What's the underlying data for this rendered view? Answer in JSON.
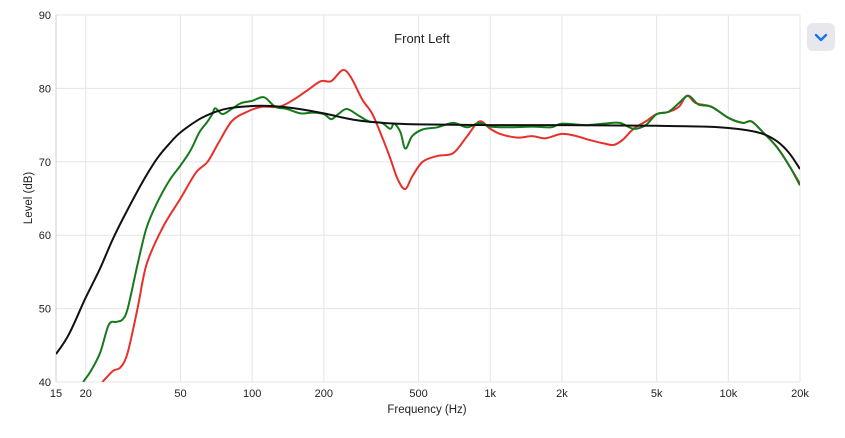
{
  "chart_data": {
    "type": "line",
    "title": "Front Left",
    "xlabel": "Frequency (Hz)",
    "ylabel": "Level (dB)",
    "xscale": "log",
    "xlim": [
      15,
      20000
    ],
    "ylim": [
      40,
      90
    ],
    "grid": true,
    "x_ticks": [
      {
        "value": 15,
        "label": "15"
      },
      {
        "value": 20,
        "label": "20"
      },
      {
        "value": 50,
        "label": "50"
      },
      {
        "value": 100,
        "label": "100"
      },
      {
        "value": 200,
        "label": "200"
      },
      {
        "value": 500,
        "label": "500"
      },
      {
        "value": 1000,
        "label": "1k"
      },
      {
        "value": 2000,
        "label": "2k"
      },
      {
        "value": 5000,
        "label": "5k"
      },
      {
        "value": 10000,
        "label": "10k"
      },
      {
        "value": 20000,
        "label": "20k"
      }
    ],
    "y_ticks": [
      {
        "value": 40,
        "label": "40"
      },
      {
        "value": 50,
        "label": "50"
      },
      {
        "value": 60,
        "label": "60"
      },
      {
        "value": 70,
        "label": "70"
      },
      {
        "value": 80,
        "label": "80"
      },
      {
        "value": 90,
        "label": "90"
      }
    ],
    "series": [
      {
        "color": "#e8302b",
        "points": [
          [
            23.5,
            40
          ],
          [
            26,
            41.5
          ],
          [
            28,
            42
          ],
          [
            30,
            44
          ],
          [
            33,
            50
          ],
          [
            36,
            56
          ],
          [
            42,
            61
          ],
          [
            50,
            65
          ],
          [
            58,
            68.5
          ],
          [
            65,
            70
          ],
          [
            72,
            72.5
          ],
          [
            82,
            75.5
          ],
          [
            95,
            76.8
          ],
          [
            110,
            77.5
          ],
          [
            130,
            77.5
          ],
          [
            150,
            78.5
          ],
          [
            175,
            80
          ],
          [
            195,
            81
          ],
          [
            215,
            81
          ],
          [
            240,
            82.5
          ],
          [
            260,
            81.5
          ],
          [
            290,
            78.5
          ],
          [
            320,
            76.5
          ],
          [
            350,
            73.5
          ],
          [
            380,
            70.5
          ],
          [
            410,
            67.5
          ],
          [
            440,
            66.3
          ],
          [
            470,
            68
          ],
          [
            520,
            70
          ],
          [
            600,
            70.8
          ],
          [
            700,
            71.2
          ],
          [
            800,
            73.5
          ],
          [
            900,
            75.5
          ],
          [
            1000,
            74.5
          ],
          [
            1100,
            73.8
          ],
          [
            1300,
            73.3
          ],
          [
            1500,
            73.5
          ],
          [
            1700,
            73.2
          ],
          [
            2000,
            73.8
          ],
          [
            2300,
            73.5
          ],
          [
            2600,
            73
          ],
          [
            3000,
            72.5
          ],
          [
            3300,
            72.3
          ],
          [
            3600,
            73
          ],
          [
            4000,
            74.5
          ],
          [
            4500,
            75.5
          ],
          [
            5000,
            76.5
          ],
          [
            5600,
            76.8
          ],
          [
            6200,
            77.5
          ],
          [
            6700,
            79
          ],
          [
            7300,
            78
          ],
          [
            8500,
            77.5
          ],
          [
            10000,
            76
          ],
          [
            11500,
            75.3
          ],
          [
            12500,
            75.5
          ],
          [
            14000,
            74
          ],
          [
            16000,
            72
          ],
          [
            18000,
            69.5
          ],
          [
            20000,
            67
          ]
        ]
      },
      {
        "color": "#157a1c",
        "points": [
          [
            19.5,
            40
          ],
          [
            21,
            41.5
          ],
          [
            23,
            44
          ],
          [
            25,
            47.8
          ],
          [
            27,
            48.2
          ],
          [
            28.5,
            48.5
          ],
          [
            30,
            50
          ],
          [
            33,
            56
          ],
          [
            36,
            61
          ],
          [
            40,
            64.5
          ],
          [
            45,
            67.5
          ],
          [
            50,
            69.5
          ],
          [
            55,
            71.5
          ],
          [
            60,
            74
          ],
          [
            65,
            75.5
          ],
          [
            68,
            76.5
          ],
          [
            70,
            77.3
          ],
          [
            75,
            76.5
          ],
          [
            82,
            77.2
          ],
          [
            90,
            78
          ],
          [
            100,
            78.3
          ],
          [
            112,
            78.8
          ],
          [
            125,
            77.5
          ],
          [
            140,
            77.2
          ],
          [
            160,
            76.6
          ],
          [
            180,
            76.7
          ],
          [
            200,
            76.5
          ],
          [
            215,
            75.8
          ],
          [
            230,
            76.5
          ],
          [
            250,
            77.2
          ],
          [
            280,
            76.3
          ],
          [
            310,
            75.5
          ],
          [
            350,
            75.3
          ],
          [
            380,
            74.5
          ],
          [
            395,
            75.2
          ],
          [
            420,
            74
          ],
          [
            440,
            71.8
          ],
          [
            470,
            73.5
          ],
          [
            520,
            74.4
          ],
          [
            600,
            74.7
          ],
          [
            700,
            75.3
          ],
          [
            800,
            74.7
          ],
          [
            900,
            75.3
          ],
          [
            1000,
            74.8
          ],
          [
            1200,
            74.7
          ],
          [
            1500,
            74.8
          ],
          [
            1800,
            74.7
          ],
          [
            2000,
            75.2
          ],
          [
            2500,
            75
          ],
          [
            3000,
            75.2
          ],
          [
            3500,
            75.3
          ],
          [
            4000,
            74.5
          ],
          [
            4500,
            75
          ],
          [
            5000,
            76.5
          ],
          [
            5600,
            76.8
          ],
          [
            6200,
            78
          ],
          [
            6800,
            79
          ],
          [
            7500,
            77.8
          ],
          [
            8500,
            77.5
          ],
          [
            10000,
            76
          ],
          [
            11500,
            75.3
          ],
          [
            12500,
            75.5
          ],
          [
            14000,
            74
          ],
          [
            16000,
            72
          ],
          [
            18000,
            69.5
          ],
          [
            20000,
            66.8
          ]
        ]
      },
      {
        "color": "#111111",
        "points": [
          [
            15,
            43.8
          ],
          [
            17,
            46.5
          ],
          [
            20,
            51.5
          ],
          [
            23,
            55.5
          ],
          [
            26,
            59.5
          ],
          [
            30,
            63.5
          ],
          [
            35,
            67.5
          ],
          [
            40,
            70.5
          ],
          [
            45,
            72.5
          ],
          [
            50,
            74
          ],
          [
            60,
            75.8
          ],
          [
            70,
            76.8
          ],
          [
            80,
            77.3
          ],
          [
            100,
            77.6
          ],
          [
            120,
            77.6
          ],
          [
            150,
            77.3
          ],
          [
            200,
            76.6
          ],
          [
            250,
            75.9
          ],
          [
            300,
            75.5
          ],
          [
            400,
            75.2
          ],
          [
            500,
            75.1
          ],
          [
            1000,
            75.0
          ],
          [
            2000,
            75.0
          ],
          [
            5000,
            74.9
          ],
          [
            8000,
            74.8
          ],
          [
            10000,
            74.6
          ],
          [
            12000,
            74.3
          ],
          [
            14000,
            73.8
          ],
          [
            16000,
            72.8
          ],
          [
            18000,
            71.2
          ],
          [
            20000,
            69
          ]
        ]
      }
    ]
  },
  "ui": {
    "expand_icon": "chevron-down-icon",
    "accent": "#1a73e8"
  }
}
